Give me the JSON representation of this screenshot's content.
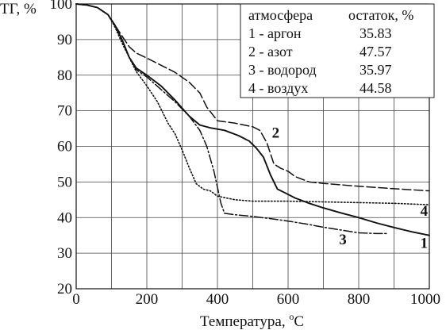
{
  "chart_data": {
    "type": "line",
    "xlabel": "Температура, ",
    "xlabel_unit_sup": "o",
    "xlabel_unit": "C",
    "ylabel": "ТГ, %",
    "xlim": [
      0,
      1000
    ],
    "ylim": [
      20,
      100
    ],
    "x_ticks": [
      "0",
      "200",
      "400",
      "600",
      "800",
      "1000"
    ],
    "y_ticks": [
      "20",
      "30",
      "40",
      "50",
      "60",
      "70",
      "80",
      "90",
      "100"
    ],
    "grid": true,
    "legend": {
      "placement": "top-right",
      "header_atmosphere": "атмосфера",
      "header_residue": "остаток, %",
      "rows": [
        {
          "label": "1 - аргон",
          "residue": "35.83"
        },
        {
          "label": "2 - азот",
          "residue": "47.57"
        },
        {
          "label": "3 - водород",
          "residue": "35.97"
        },
        {
          "label": "4 - воздух",
          "residue": "44.58"
        }
      ]
    },
    "series": [
      {
        "curve_label": "1",
        "style": "solid",
        "x": [
          0,
          30,
          60,
          90,
          110,
          130,
          150,
          170,
          200,
          240,
          280,
          320,
          350,
          380,
          420,
          460,
          490,
          510,
          530,
          550,
          570,
          590,
          620,
          660,
          700,
          750,
          800,
          850,
          900,
          950,
          1000
        ],
        "y": [
          100,
          99.7,
          99,
          97,
          94,
          90,
          85,
          82,
          80,
          77,
          73,
          68.5,
          66,
          65.2,
          64.5,
          63,
          61.5,
          59.5,
          57,
          52,
          48,
          47,
          45.5,
          44,
          42.7,
          41.3,
          40,
          38.5,
          37.2,
          36,
          35
        ]
      },
      {
        "curve_label": "2",
        "style": "dashed",
        "x": [
          0,
          30,
          60,
          90,
          110,
          130,
          150,
          170,
          200,
          240,
          280,
          320,
          350,
          370,
          400,
          450,
          500,
          520,
          540,
          560,
          580,
          600,
          620,
          660,
          700,
          800,
          900,
          1000
        ],
        "y": [
          100,
          99.7,
          99,
          97,
          94,
          91,
          88,
          86.2,
          84.8,
          82.8,
          80.8,
          78,
          75,
          71,
          67.2,
          66.5,
          65.5,
          64.5,
          61,
          55,
          53.8,
          53,
          51.5,
          50,
          49.6,
          48.8,
          48.1,
          47.5
        ]
      },
      {
        "curve_label": "3",
        "style": "dashdot",
        "x": [
          0,
          30,
          60,
          90,
          110,
          130,
          150,
          170,
          200,
          240,
          280,
          320,
          350,
          370,
          390,
          410,
          420,
          450,
          500,
          550,
          600,
          650,
          700,
          750,
          800,
          850,
          880
        ],
        "y": [
          100,
          99.7,
          99,
          97,
          94,
          90,
          85,
          81.5,
          79.5,
          76,
          72.5,
          68.5,
          64.5,
          60,
          53,
          44,
          41.2,
          40.8,
          40.3,
          39.7,
          39,
          38.2,
          37.3,
          36.5,
          35.7,
          35.5,
          35.5
        ]
      },
      {
        "curve_label": "4",
        "style": "dotted",
        "x": [
          0,
          30,
          60,
          90,
          110,
          130,
          150,
          170,
          200,
          230,
          260,
          280,
          300,
          320,
          340,
          360,
          380,
          400,
          450,
          500,
          600,
          700,
          800,
          900,
          1000
        ],
        "y": [
          100,
          99.7,
          99,
          97,
          93.5,
          89,
          85,
          81,
          77,
          72.5,
          66.5,
          63.5,
          59,
          54,
          49.5,
          48,
          47.5,
          46,
          45,
          44.6,
          44.6,
          44.4,
          44.2,
          44,
          43.6
        ]
      }
    ]
  }
}
